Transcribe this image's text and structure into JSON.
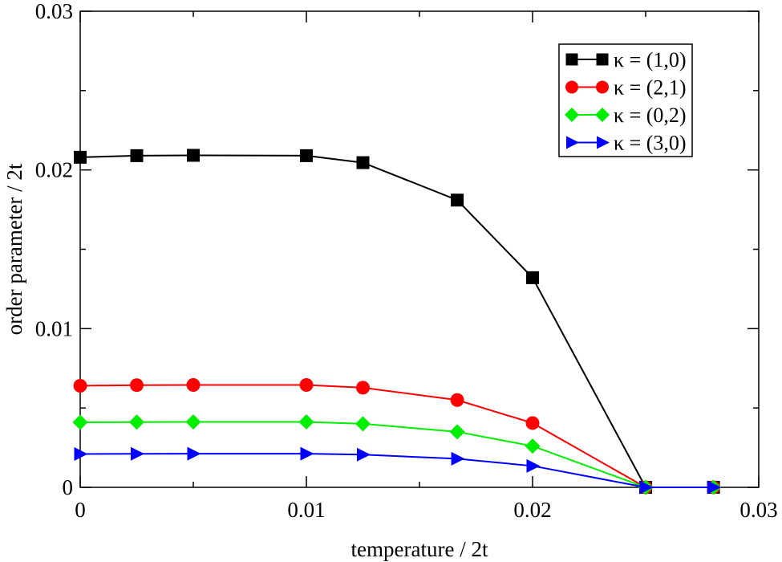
{
  "chart_data": {
    "type": "line",
    "title": "",
    "xlabel": "temperature / 2t",
    "ylabel": "order parameter / 2t",
    "xlim": [
      0,
      0.03
    ],
    "ylim": [
      0,
      0.03
    ],
    "xticks": [
      "0",
      "0.01",
      "0.02",
      "0.03"
    ],
    "yticks": [
      "0",
      "0.01",
      "0.02",
      "0.03"
    ],
    "x": [
      0,
      0.0025,
      0.005,
      0.01,
      0.0125,
      0.01667,
      0.02,
      0.025,
      0.028
    ],
    "legend_position": "top-right",
    "series": [
      {
        "name": "κ = (1,0)",
        "color": "#000000",
        "marker": "square",
        "values": [
          0.0208,
          0.0209,
          0.02092,
          0.0209,
          0.02046,
          0.0181,
          0.01321,
          0,
          0
        ]
      },
      {
        "name": "κ = (2,1)",
        "color": "#ff0000",
        "marker": "circle",
        "values": [
          0.0064,
          0.00644,
          0.00645,
          0.00645,
          0.00628,
          0.0055,
          0.00405,
          0,
          0
        ]
      },
      {
        "name": "κ = (0,2)",
        "color": "#00ee00",
        "marker": "diamond",
        "values": [
          0.0041,
          0.00411,
          0.00412,
          0.00412,
          0.004,
          0.0035,
          0.0026,
          0,
          0
        ]
      },
      {
        "name": "κ = (3,0)",
        "color": "#0000ff",
        "marker": "triangle-right",
        "values": [
          0.0021,
          0.00211,
          0.00212,
          0.00212,
          0.00206,
          0.0018,
          0.00135,
          0,
          0
        ]
      }
    ]
  }
}
